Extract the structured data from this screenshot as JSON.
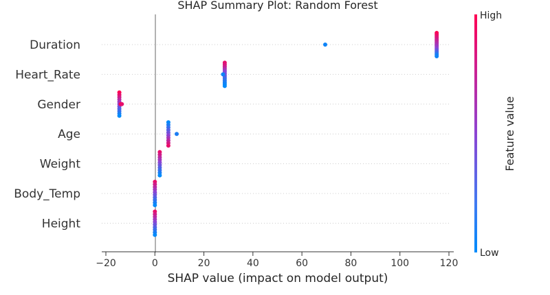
{
  "chart_data": {
    "type": "scatter",
    "title": "SHAP Summary Plot: Random Forest",
    "xlabel": "SHAP value (impact on model output)",
    "ylabel": "",
    "xlim": [
      -20,
      120
    ],
    "xticks": [
      -20,
      0,
      20,
      40,
      60,
      80,
      100,
      120
    ],
    "features": [
      "Duration",
      "Heart_Rate",
      "Gender",
      "Age",
      "Weight",
      "Body_Temp",
      "Height"
    ],
    "colorbar": {
      "title": "Feature value",
      "high_label": "High",
      "low_label": "Low",
      "low_color": "#008bfb",
      "high_color": "#ff0052"
    },
    "grid": false,
    "legend": "colorbar-right",
    "series": [
      {
        "feature": "Duration",
        "points": [
          [
            115,
            1.0
          ],
          [
            115,
            0.95
          ],
          [
            115,
            0.9
          ],
          [
            115,
            0.85
          ],
          [
            115,
            0.8
          ],
          [
            115,
            0.75
          ],
          [
            115,
            0.7
          ],
          [
            115,
            0.65
          ],
          [
            115,
            0.6
          ],
          [
            115,
            0.55
          ],
          [
            115,
            0.5
          ],
          [
            115,
            0.4
          ],
          [
            115,
            0.3
          ],
          [
            115,
            0.2
          ],
          [
            115,
            0.1
          ],
          [
            115,
            0.05
          ],
          [
            69.5,
            0.05
          ]
        ]
      },
      {
        "feature": "Heart_Rate",
        "points": [
          [
            28.5,
            0.9
          ],
          [
            28.5,
            0.85
          ],
          [
            28.5,
            0.8
          ],
          [
            28.5,
            0.7
          ],
          [
            28.5,
            0.6
          ],
          [
            28.5,
            0.5
          ],
          [
            28.5,
            0.45
          ],
          [
            28.5,
            0.4
          ],
          [
            28.5,
            0.3
          ],
          [
            28.5,
            0.2
          ],
          [
            28.5,
            0.15
          ],
          [
            28.5,
            0.1
          ],
          [
            28.5,
            0.05
          ],
          [
            28.5,
            0.0
          ],
          [
            27.8,
            0.05
          ]
        ]
      },
      {
        "feature": "Gender",
        "points": [
          [
            -14.5,
            1.0
          ],
          [
            -14.5,
            0.9
          ],
          [
            -14.5,
            0.8
          ],
          [
            -14.5,
            0.7
          ],
          [
            -14.5,
            0.6
          ],
          [
            -14.5,
            0.5
          ],
          [
            -14.5,
            0.4
          ],
          [
            -14.5,
            0.3
          ],
          [
            -14.5,
            0.2
          ],
          [
            -14.5,
            0.1
          ],
          [
            -14.5,
            0.0
          ],
          [
            -14.0,
            1.0
          ],
          [
            -13.5,
            0.9
          ]
        ]
      },
      {
        "feature": "Age",
        "points": [
          [
            5.5,
            0.0
          ],
          [
            5.5,
            0.1
          ],
          [
            5.5,
            0.2
          ],
          [
            5.5,
            0.3
          ],
          [
            5.5,
            0.4
          ],
          [
            5.5,
            0.5
          ],
          [
            5.5,
            0.6
          ],
          [
            5.5,
            0.7
          ],
          [
            5.5,
            0.8
          ],
          [
            5.5,
            0.9
          ],
          [
            8.9,
            0.1
          ]
        ]
      },
      {
        "feature": "Weight",
        "points": [
          [
            2.0,
            0.9
          ],
          [
            2.0,
            0.8
          ],
          [
            2.0,
            0.7
          ],
          [
            2.0,
            0.6
          ],
          [
            2.0,
            0.5
          ],
          [
            2.0,
            0.4
          ],
          [
            2.0,
            0.3
          ],
          [
            2.0,
            0.2
          ],
          [
            2.0,
            0.1
          ],
          [
            2.0,
            0.0
          ]
        ]
      },
      {
        "feature": "Body_Temp",
        "points": [
          [
            0.0,
            0.9
          ],
          [
            0.0,
            0.8
          ],
          [
            0.0,
            0.7
          ],
          [
            0.0,
            0.6
          ],
          [
            0.0,
            0.5
          ],
          [
            0.0,
            0.4
          ],
          [
            0.0,
            0.3
          ],
          [
            0.0,
            0.2
          ],
          [
            0.0,
            0.1
          ],
          [
            0.0,
            0.0
          ]
        ]
      },
      {
        "feature": "Height",
        "points": [
          [
            0.0,
            0.9
          ],
          [
            0.0,
            0.8
          ],
          [
            0.0,
            0.7
          ],
          [
            0.0,
            0.6
          ],
          [
            0.0,
            0.5
          ],
          [
            0.0,
            0.4
          ],
          [
            0.0,
            0.3
          ],
          [
            0.0,
            0.2
          ],
          [
            0.0,
            0.1
          ],
          [
            0.0,
            0.0
          ]
        ]
      }
    ]
  }
}
